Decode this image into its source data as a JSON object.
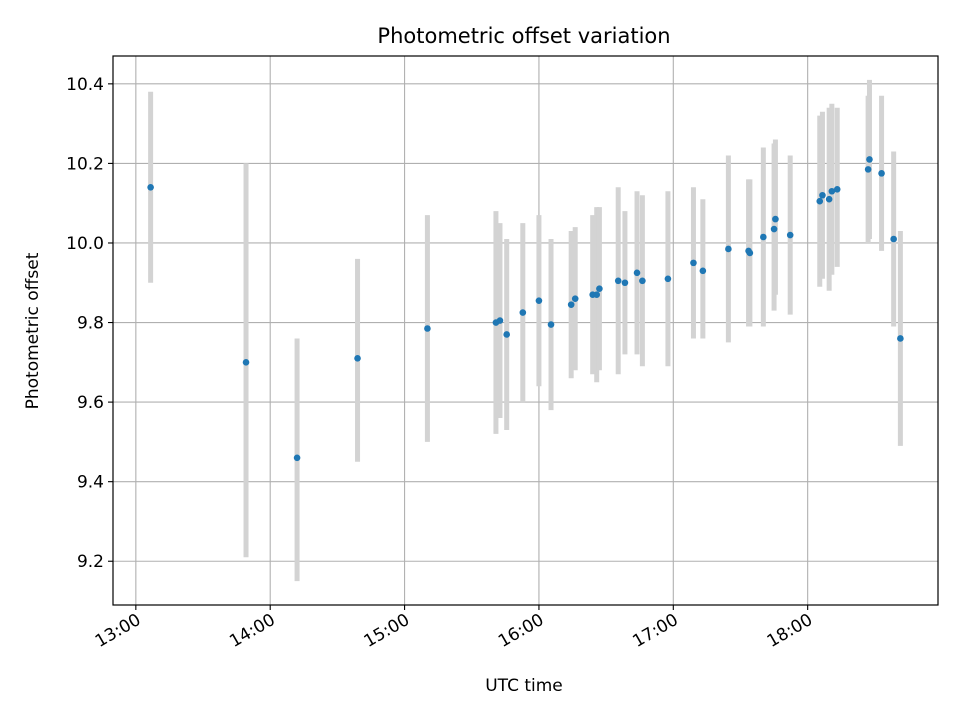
{
  "chart_data": {
    "type": "scatter",
    "title": "Photometric offset variation",
    "xlabel": "UTC time",
    "ylabel": "Photometric offset",
    "x_unit": "hours (UTC, decimal)",
    "xlim": [
      12.83,
      18.97
    ],
    "ylim": [
      9.09,
      10.47
    ],
    "grid": true,
    "x_ticks": [
      {
        "value": 13,
        "label": "13:00"
      },
      {
        "value": 14,
        "label": "14:00"
      },
      {
        "value": 15,
        "label": "15:00"
      },
      {
        "value": 16,
        "label": "16:00"
      },
      {
        "value": 17,
        "label": "17:00"
      },
      {
        "value": 18,
        "label": "18:00"
      }
    ],
    "y_ticks": [
      {
        "value": 9.2,
        "label": "9.2"
      },
      {
        "value": 9.4,
        "label": "9.4"
      },
      {
        "value": 9.6,
        "label": "9.6"
      },
      {
        "value": 9.8,
        "label": "9.8"
      },
      {
        "value": 10.0,
        "label": "10.0"
      },
      {
        "value": 10.2,
        "label": "10.2"
      },
      {
        "value": 10.4,
        "label": "10.4"
      }
    ],
    "colors": {
      "point": "#1f77b4",
      "errorbar": "#d3d3d3",
      "grid": "#b0b0b0",
      "axis": "#000000"
    },
    "series": [
      {
        "name": "Photometric offset",
        "points": [
          {
            "x": 13.11,
            "y": 10.14,
            "lo": 9.9,
            "hi": 10.38
          },
          {
            "x": 13.82,
            "y": 9.7,
            "lo": 9.21,
            "hi": 10.2
          },
          {
            "x": 14.2,
            "y": 9.46,
            "lo": 9.15,
            "hi": 9.76
          },
          {
            "x": 14.65,
            "y": 9.71,
            "lo": 9.45,
            "hi": 9.96
          },
          {
            "x": 15.17,
            "y": 9.785,
            "lo": 9.5,
            "hi": 10.07
          },
          {
            "x": 15.68,
            "y": 9.8,
            "lo": 9.52,
            "hi": 10.08
          },
          {
            "x": 15.71,
            "y": 9.805,
            "lo": 9.56,
            "hi": 10.05
          },
          {
            "x": 15.76,
            "y": 9.77,
            "lo": 9.53,
            "hi": 10.01
          },
          {
            "x": 15.88,
            "y": 9.825,
            "lo": 9.6,
            "hi": 10.05
          },
          {
            "x": 16.0,
            "y": 9.855,
            "lo": 9.64,
            "hi": 10.07
          },
          {
            "x": 16.09,
            "y": 9.795,
            "lo": 9.58,
            "hi": 10.01
          },
          {
            "x": 16.24,
            "y": 9.845,
            "lo": 9.66,
            "hi": 10.03
          },
          {
            "x": 16.27,
            "y": 9.86,
            "lo": 9.68,
            "hi": 10.04
          },
          {
            "x": 16.4,
            "y": 9.87,
            "lo": 9.67,
            "hi": 10.07
          },
          {
            "x": 16.43,
            "y": 9.87,
            "lo": 9.65,
            "hi": 10.09
          },
          {
            "x": 16.45,
            "y": 9.885,
            "lo": 9.68,
            "hi": 10.09
          },
          {
            "x": 16.59,
            "y": 9.905,
            "lo": 9.67,
            "hi": 10.14
          },
          {
            "x": 16.64,
            "y": 9.9,
            "lo": 9.72,
            "hi": 10.08
          },
          {
            "x": 16.73,
            "y": 9.925,
            "lo": 9.72,
            "hi": 10.13
          },
          {
            "x": 16.77,
            "y": 9.905,
            "lo": 9.69,
            "hi": 10.12
          },
          {
            "x": 16.96,
            "y": 9.91,
            "lo": 9.69,
            "hi": 10.13
          },
          {
            "x": 17.15,
            "y": 9.95,
            "lo": 9.76,
            "hi": 10.14
          },
          {
            "x": 17.22,
            "y": 9.93,
            "lo": 9.76,
            "hi": 10.11
          },
          {
            "x": 17.41,
            "y": 9.985,
            "lo": 9.75,
            "hi": 10.22
          },
          {
            "x": 17.56,
            "y": 9.98,
            "lo": 9.79,
            "hi": 10.16
          },
          {
            "x": 17.57,
            "y": 9.975,
            "lo": 9.79,
            "hi": 10.16
          },
          {
            "x": 17.67,
            "y": 10.015,
            "lo": 9.79,
            "hi": 10.24
          },
          {
            "x": 17.75,
            "y": 10.035,
            "lo": 9.83,
            "hi": 10.25
          },
          {
            "x": 17.76,
            "y": 10.06,
            "lo": 9.87,
            "hi": 10.26
          },
          {
            "x": 17.87,
            "y": 10.02,
            "lo": 9.82,
            "hi": 10.22
          },
          {
            "x": 18.09,
            "y": 10.105,
            "lo": 9.89,
            "hi": 10.32
          },
          {
            "x": 18.11,
            "y": 10.12,
            "lo": 9.91,
            "hi": 10.33
          },
          {
            "x": 18.16,
            "y": 10.11,
            "lo": 9.88,
            "hi": 10.34
          },
          {
            "x": 18.18,
            "y": 10.13,
            "lo": 9.92,
            "hi": 10.35
          },
          {
            "x": 18.22,
            "y": 10.135,
            "lo": 9.94,
            "hi": 10.34
          },
          {
            "x": 18.45,
            "y": 10.185,
            "lo": 10.0,
            "hi": 10.37
          },
          {
            "x": 18.46,
            "y": 10.21,
            "lo": 10.01,
            "hi": 10.41
          },
          {
            "x": 18.55,
            "y": 10.175,
            "lo": 9.98,
            "hi": 10.37
          },
          {
            "x": 18.64,
            "y": 10.01,
            "lo": 9.79,
            "hi": 10.23
          },
          {
            "x": 18.69,
            "y": 9.76,
            "lo": 9.49,
            "hi": 10.03
          }
        ]
      }
    ]
  }
}
